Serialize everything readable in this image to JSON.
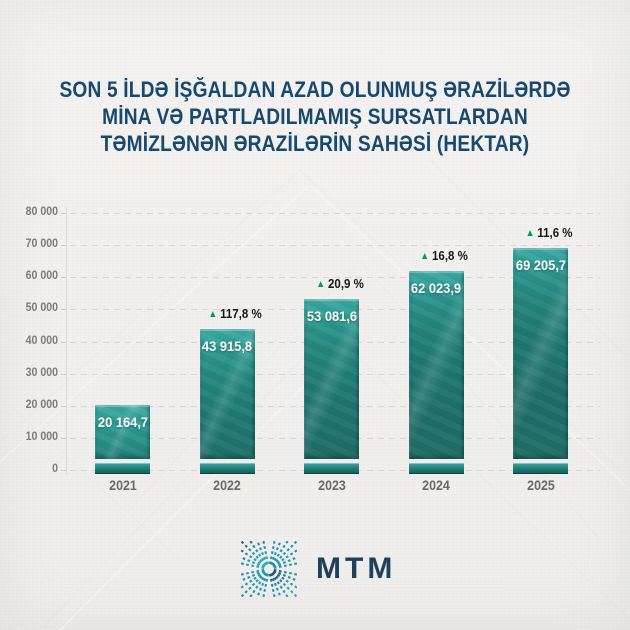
{
  "title": {
    "lines": [
      "SON 5 İLDƏ İŞĞALDAN AZAD OLUNMUŞ ƏRAZİLƏRDƏ",
      "MİNA VƏ PARTLADILMAMIŞ SURSATLARDAN",
      "TƏMİZLƏNƏN ƏRAZİLƏRİN SAHƏSİ (HEKTAR)"
    ]
  },
  "chart_data": {
    "type": "bar",
    "title": "Son 5 ildə işğaldan azad olunmuş ərazilərdə mina və partladılmamış sursatlardan təmizlənən ərazilərin sahəsi (hektar)",
    "categories": [
      "2021",
      "2022",
      "2023",
      "2024",
      "2025"
    ],
    "values": [
      20164.7,
      43915.8,
      53081.6,
      62023.9,
      69205.7
    ],
    "value_labels": [
      "20 164,7",
      "43 915,8",
      "53 081,6",
      "62 023,9",
      "69 205,7"
    ],
    "pct_change_labels": [
      null,
      "117,8 %",
      "20,9 %",
      "16,8 %",
      "11,6 %"
    ],
    "increase_marker": "▲",
    "xlabel": "",
    "ylabel": "",
    "ylim": [
      0,
      80000
    ],
    "yticks": [
      0,
      10000,
      20000,
      30000,
      40000,
      50000,
      60000,
      70000,
      80000
    ],
    "ytick_labels": [
      "0",
      "10 000",
      "20 000",
      "30 000",
      "40 000",
      "50 000",
      "60 000",
      "70 000",
      "80 000"
    ],
    "grid": "horizontal dashed",
    "legend": "none",
    "bar_color": "#217a73",
    "bar_cap_color": "#3dada4",
    "increase_marker_color": "#00a14b",
    "value_label_color": "#ffffff",
    "pct_label_color": "#161614"
  },
  "footer": {
    "logo_text": "MTM",
    "logo_mark": "mtm-radial-dashes-square"
  },
  "colors": {
    "background": "#f2f1ef",
    "title_text": "#17486e",
    "axis_text": "#7b7b79",
    "gridline": "#d7d6d3",
    "logo_text": "#21405e"
  }
}
